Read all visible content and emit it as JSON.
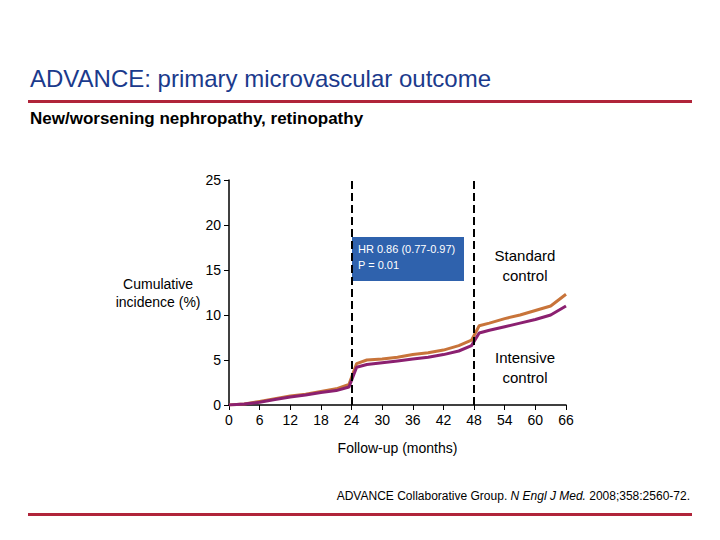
{
  "chart_data": {
    "type": "line",
    "title": "ADVANCE: primary microvascular outcome",
    "subtitle": "New/worsening nephropathy, retinopathy",
    "x_label": "Follow-up (months)",
    "y_label": "Cumulative incidence (%)",
    "x": [
      0,
      3,
      6,
      9,
      12,
      15,
      18,
      21,
      23.5,
      25,
      27,
      30,
      33,
      36,
      39,
      42,
      45,
      47.5,
      49,
      51,
      54,
      57,
      60,
      63,
      66
    ],
    "series": [
      {
        "name": "Standard control",
        "color": "#c8743a",
        "values": [
          0,
          0.1,
          0.4,
          0.7,
          1.0,
          1.2,
          1.5,
          1.8,
          2.3,
          4.6,
          5.0,
          5.1,
          5.3,
          5.6,
          5.8,
          6.1,
          6.6,
          7.2,
          8.8,
          9.1,
          9.6,
          10.0,
          10.5,
          11.0,
          12.3
        ]
      },
      {
        "name": "Intensive control",
        "color": "#8b2070",
        "values": [
          0,
          0.1,
          0.3,
          0.6,
          0.9,
          1.1,
          1.4,
          1.6,
          2.0,
          4.2,
          4.5,
          4.7,
          4.9,
          5.1,
          5.3,
          5.6,
          6.0,
          6.6,
          8.0,
          8.3,
          8.7,
          9.1,
          9.5,
          10.0,
          11.0
        ]
      }
    ],
    "xlim": [
      0,
      66
    ],
    "xticks": [
      0,
      6,
      12,
      18,
      24,
      30,
      36,
      42,
      48,
      54,
      60,
      66
    ],
    "ylim": [
      0,
      25
    ],
    "yticks": [
      0,
      5,
      10,
      15,
      20,
      25
    ],
    "grid": false,
    "vlines": [
      24,
      48
    ],
    "annotation": [
      "HR 0.86 (0.77-0.97)",
      "P = 0.01"
    ],
    "source": {
      "author": "ADVANCE Collaborative Group.",
      "journal": "N Engl J Med.",
      "details": "2008;358:2560-72."
    }
  }
}
